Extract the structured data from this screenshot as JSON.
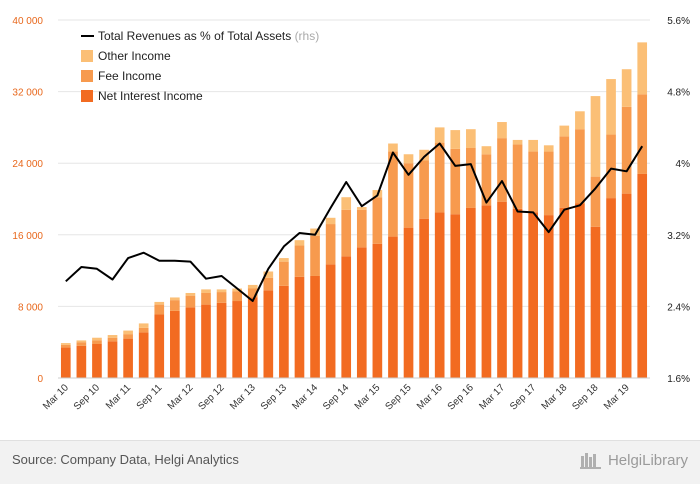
{
  "chart_data": {
    "type": "bar",
    "stacked": true,
    "categories": [
      "Mar 10",
      "Jun 10",
      "Sep 10",
      "Dec 10",
      "Mar 11",
      "Jun 11",
      "Sep 11",
      "Dec 11",
      "Mar 12",
      "Jun 12",
      "Sep 12",
      "Dec 12",
      "Mar 13",
      "Jun 13",
      "Sep 13",
      "Dec 13",
      "Mar 14",
      "Jun 14",
      "Sep 14",
      "Dec 14",
      "Mar 15",
      "Jun 15",
      "Sep 15",
      "Dec 15",
      "Mar 16",
      "Jun 16",
      "Sep 16",
      "Dec 16",
      "Mar 17",
      "Jun 17",
      "Sep 17",
      "Dec 17",
      "Mar 18",
      "Jun 18",
      "Sep 18",
      "Dec 18",
      "Mar 19",
      "Jun 19"
    ],
    "x_tick_labels": [
      "Mar 10",
      "Sep 10",
      "Mar 11",
      "Sep 11",
      "Mar 12",
      "Sep 12",
      "Mar 13",
      "Sep 13",
      "Mar 14",
      "Sep 14",
      "Mar 15",
      "Sep 15",
      "Mar 16",
      "Sep 16",
      "Mar 17",
      "Sep 17",
      "Mar 18",
      "Sep 18",
      "Mar 19"
    ],
    "series": [
      {
        "name": "Net Interest Income",
        "color": "#f26b21",
        "values": [
          3400,
          3600,
          3800,
          4100,
          4400,
          5100,
          7100,
          7500,
          7900,
          8200,
          8400,
          8600,
          9000,
          9800,
          10300,
          11300,
          11400,
          12700,
          13600,
          14600,
          15000,
          15800,
          16800,
          17800,
          18500,
          18300,
          19000,
          19300,
          19700,
          18900,
          18500,
          18200,
          19000,
          19500,
          16900,
          20100,
          20600,
          22800
        ]
      },
      {
        "name": "Fee Income",
        "color": "#f79a4e",
        "values": [
          300,
          400,
          400,
          400,
          500,
          500,
          1100,
          1200,
          1300,
          1300,
          1200,
          1100,
          1000,
          1400,
          2700,
          3500,
          4500,
          4500,
          5200,
          4200,
          5200,
          9500,
          7200,
          6500,
          7800,
          7300,
          6700,
          5700,
          7100,
          7200,
          6800,
          7100,
          8000,
          8300,
          5600,
          7100,
          9700,
          8900
        ]
      },
      {
        "name": "Other Income",
        "color": "#fbbf76",
        "values": [
          200,
          200,
          300,
          300,
          400,
          500,
          300,
          300,
          300,
          400,
          300,
          300,
          400,
          700,
          400,
          600,
          800,
          700,
          1400,
          300,
          800,
          900,
          1000,
          1200,
          1700,
          2100,
          2100,
          900,
          1800,
          500,
          1300,
          700,
          1200,
          2000,
          9000,
          6200,
          4200,
          5800
        ]
      }
    ],
    "line": {
      "name": "Total Revenues as % of Total Assets",
      "suffix": "(rhs)",
      "color": "#000000",
      "axis": "right",
      "values": [
        2.68,
        2.84,
        2.82,
        2.7,
        2.94,
        3.0,
        2.91,
        2.91,
        2.9,
        2.71,
        2.74,
        2.6,
        2.46,
        2.82,
        3.07,
        3.22,
        3.2,
        3.5,
        3.79,
        3.52,
        3.64,
        4.12,
        3.87,
        4.07,
        4.22,
        3.97,
        3.99,
        3.56,
        3.8,
        3.46,
        3.45,
        3.23,
        3.48,
        3.53,
        3.72,
        3.94,
        3.91,
        4.19
      ]
    },
    "ylim": [
      0,
      40000
    ],
    "y_ticks": [
      "0",
      "8 000",
      "16 000",
      "24 000",
      "32 000",
      "40 000"
    ],
    "y_ticks_values": [
      0,
      8000,
      16000,
      24000,
      32000,
      40000
    ],
    "y2lim": [
      1.6,
      5.6
    ],
    "y2_ticks": [
      "1.6%",
      "2.4%",
      "3.2%",
      "4%",
      "4.8%",
      "5.6%"
    ],
    "y2_ticks_values": [
      1.6,
      2.4,
      3.2,
      4.0,
      4.8,
      5.6
    ],
    "grid": "horizontal",
    "legend": "top-left"
  },
  "footer": {
    "source": "Source: Company Data, Helgi Analytics",
    "brand": "HelgiLibrary"
  }
}
